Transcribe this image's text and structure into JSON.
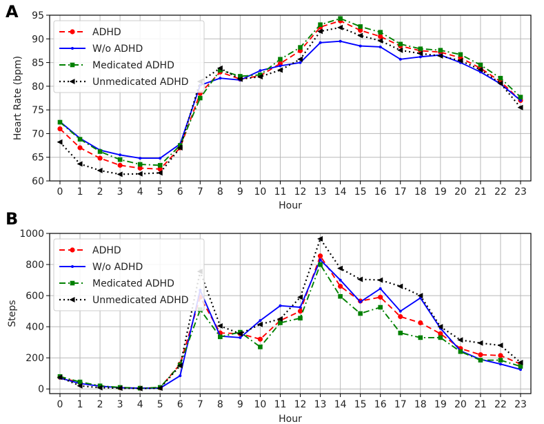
{
  "chart_data": [
    {
      "panel": "A",
      "type": "line",
      "xlabel": "Hour",
      "ylabel": "Heart Rate (bpm)",
      "categories": [
        "0",
        "1",
        "2",
        "3",
        "4",
        "5",
        "6",
        "7",
        "8",
        "9",
        "10",
        "11",
        "12",
        "13",
        "14",
        "15",
        "16",
        "17",
        "18",
        "19",
        "20",
        "21",
        "22",
        "23"
      ],
      "ylim": [
        60,
        95
      ],
      "yticks": [
        60,
        65,
        70,
        75,
        80,
        85,
        90,
        95
      ],
      "grid": true,
      "legend": "top-left",
      "series": [
        {
          "name": "ADHD",
          "color": "#ff0000",
          "dash": "8,5",
          "marker": "circle",
          "values": [
            71.0,
            67.0,
            64.8,
            63.3,
            62.7,
            62.5,
            67.0,
            78.5,
            83.0,
            81.5,
            82.2,
            84.8,
            87.5,
            92.5,
            93.8,
            91.8,
            90.5,
            88.5,
            87.5,
            87.2,
            86.0,
            83.8,
            81.0,
            77.0
          ]
        },
        {
          "name": "W/o ADHD",
          "color": "#0000ff",
          "dash": "",
          "marker": "dot",
          "values": [
            72.5,
            69.0,
            66.5,
            65.5,
            64.8,
            64.8,
            67.8,
            80.2,
            81.7,
            81.3,
            83.3,
            84.3,
            85.0,
            89.2,
            89.5,
            88.5,
            88.3,
            85.7,
            86.2,
            86.6,
            85.0,
            83.0,
            80.5,
            77.0
          ]
        },
        {
          "name": "Medicated ADHD",
          "color": "#008000",
          "dash": "9,4,2,4",
          "marker": "square",
          "values": [
            72.4,
            68.8,
            66.2,
            64.5,
            63.5,
            63.3,
            67.5,
            77.5,
            83.4,
            82.1,
            82.4,
            85.7,
            88.2,
            93.0,
            94.3,
            92.6,
            91.4,
            88.9,
            87.9,
            87.6,
            86.7,
            84.5,
            81.7,
            77.7
          ]
        },
        {
          "name": "Unmedicated ADHD",
          "color": "#000000",
          "dash": "2,4",
          "marker": "triangle-left",
          "values": [
            68.2,
            63.6,
            62.2,
            61.4,
            61.5,
            61.7,
            67.0,
            81.0,
            83.8,
            81.5,
            82.0,
            83.4,
            85.7,
            91.6,
            92.4,
            90.7,
            89.6,
            87.6,
            86.9,
            86.4,
            85.4,
            83.5,
            80.6,
            75.5
          ]
        }
      ]
    },
    {
      "panel": "B",
      "type": "line",
      "xlabel": "Hour",
      "ylabel": "Steps",
      "categories": [
        "0",
        "1",
        "2",
        "3",
        "4",
        "5",
        "6",
        "7",
        "8",
        "9",
        "10",
        "11",
        "12",
        "13",
        "14",
        "15",
        "16",
        "17",
        "18",
        "19",
        "20",
        "21",
        "22",
        "23"
      ],
      "ylim": [
        -30,
        1000
      ],
      "yticks": [
        0,
        200,
        400,
        600,
        800,
        1000
      ],
      "grid": true,
      "legend": "top-left",
      "series": [
        {
          "name": "ADHD",
          "color": "#ff0000",
          "dash": "8,5",
          "marker": "circle",
          "values": [
            75,
            40,
            18,
            8,
            5,
            8,
            160,
            590,
            360,
            355,
            320,
            440,
            500,
            855,
            660,
            565,
            590,
            465,
            425,
            355,
            260,
            220,
            215,
            160
          ]
        },
        {
          "name": "W/o ADHD",
          "color": "#0000ff",
          "dash": "",
          "marker": "dot",
          "values": [
            70,
            35,
            18,
            8,
            5,
            5,
            85,
            635,
            340,
            330,
            440,
            535,
            525,
            830,
            700,
            560,
            645,
            500,
            585,
            390,
            245,
            190,
            160,
            125
          ]
        },
        {
          "name": "Medicated ADHD",
          "color": "#008000",
          "dash": "9,4,2,4",
          "marker": "square",
          "values": [
            80,
            45,
            20,
            10,
            5,
            10,
            155,
            510,
            335,
            365,
            270,
            425,
            455,
            800,
            595,
            485,
            525,
            360,
            330,
            330,
            240,
            185,
            185,
            145
          ]
        },
        {
          "name": "Unmedicated ADHD",
          "color": "#000000",
          "dash": "2,4",
          "marker": "triangle-left",
          "values": [
            75,
            20,
            8,
            5,
            3,
            5,
            150,
            755,
            405,
            355,
            415,
            450,
            590,
            965,
            775,
            705,
            700,
            660,
            600,
            400,
            315,
            295,
            280,
            170
          ]
        }
      ]
    }
  ]
}
